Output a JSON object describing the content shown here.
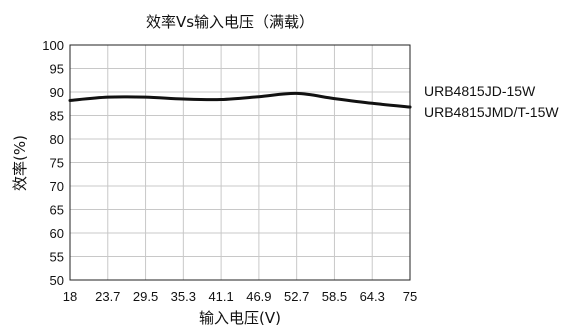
{
  "chart_data": {
    "type": "line",
    "title": "效率Vs输入电压（满载）",
    "xlabel": "输入电压(V)",
    "ylabel": "效率(%)",
    "x_ticks": [
      "18",
      "23.7",
      "29.5",
      "35.3",
      "41.1",
      "46.9",
      "52.7",
      "58.5",
      "64.3",
      "75"
    ],
    "y_ticks": [
      "100",
      "95",
      "90",
      "85",
      "80",
      "75",
      "70",
      "65",
      "60",
      "55",
      "50"
    ],
    "ylim": [
      50,
      100
    ],
    "grid": true,
    "legend_position": "right",
    "legend": [
      "URB4815JD-15W",
      "URB4815JMD/T-15W"
    ],
    "series": [
      {
        "x": [
          "18",
          "23.7",
          "29.5",
          "35.3",
          "41.1",
          "46.9",
          "52.7",
          "58.5",
          "64.3",
          "75"
        ],
        "values": [
          88.2,
          88.9,
          88.9,
          88.5,
          88.4,
          89.0,
          89.7,
          88.6,
          87.6,
          86.8
        ],
        "color": "#111111"
      }
    ]
  }
}
